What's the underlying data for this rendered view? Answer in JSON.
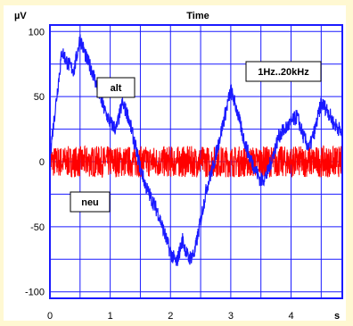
{
  "chart_data": {
    "type": "line",
    "title": "Time",
    "ylabel": "µV",
    "xlabel": "s",
    "xlim": [
      0,
      4.85
    ],
    "ylim": [
      -105,
      105
    ],
    "x_ticks": [
      0,
      1,
      2,
      3,
      4
    ],
    "y_ticks": [
      100,
      50,
      0,
      -50,
      -100
    ],
    "grid": true,
    "series": [
      {
        "name": "alt",
        "color": "#1a1aff",
        "x": [
          0,
          0.05,
          0.1,
          0.15,
          0.2,
          0.3,
          0.4,
          0.5,
          0.6,
          0.7,
          0.8,
          0.9,
          1.0,
          1.1,
          1.2,
          1.3,
          1.4,
          1.5,
          1.6,
          1.7,
          1.8,
          1.9,
          2.0,
          2.1,
          2.2,
          2.3,
          2.4,
          2.5,
          2.6,
          2.7,
          2.8,
          2.9,
          3.0,
          3.1,
          3.2,
          3.3,
          3.4,
          3.5,
          3.6,
          3.7,
          3.8,
          3.9,
          4.0,
          4.1,
          4.2,
          4.3,
          4.4,
          4.5,
          4.6,
          4.7,
          4.8,
          4.85
        ],
        "y": [
          5,
          25,
          45,
          65,
          85,
          75,
          70,
          95,
          80,
          70,
          55,
          40,
          30,
          25,
          45,
          35,
          15,
          -5,
          -20,
          -30,
          -40,
          -55,
          -70,
          -78,
          -60,
          -75,
          -70,
          -45,
          -20,
          -5,
          15,
          35,
          55,
          40,
          20,
          5,
          -5,
          -15,
          -10,
          5,
          20,
          25,
          30,
          35,
          20,
          10,
          25,
          45,
          40,
          30,
          25,
          20
        ]
      },
      {
        "name": "neu",
        "color": "#ff0000",
        "noise_amplitude": 12,
        "x": [
          0,
          4.85
        ],
        "y": [
          0,
          0
        ]
      }
    ],
    "annotations": [
      {
        "text": "alt",
        "target": "alt"
      },
      {
        "text": "neu",
        "target": "neu"
      },
      {
        "text": "1Hz..20kHz",
        "target": "bandwidth"
      }
    ]
  }
}
